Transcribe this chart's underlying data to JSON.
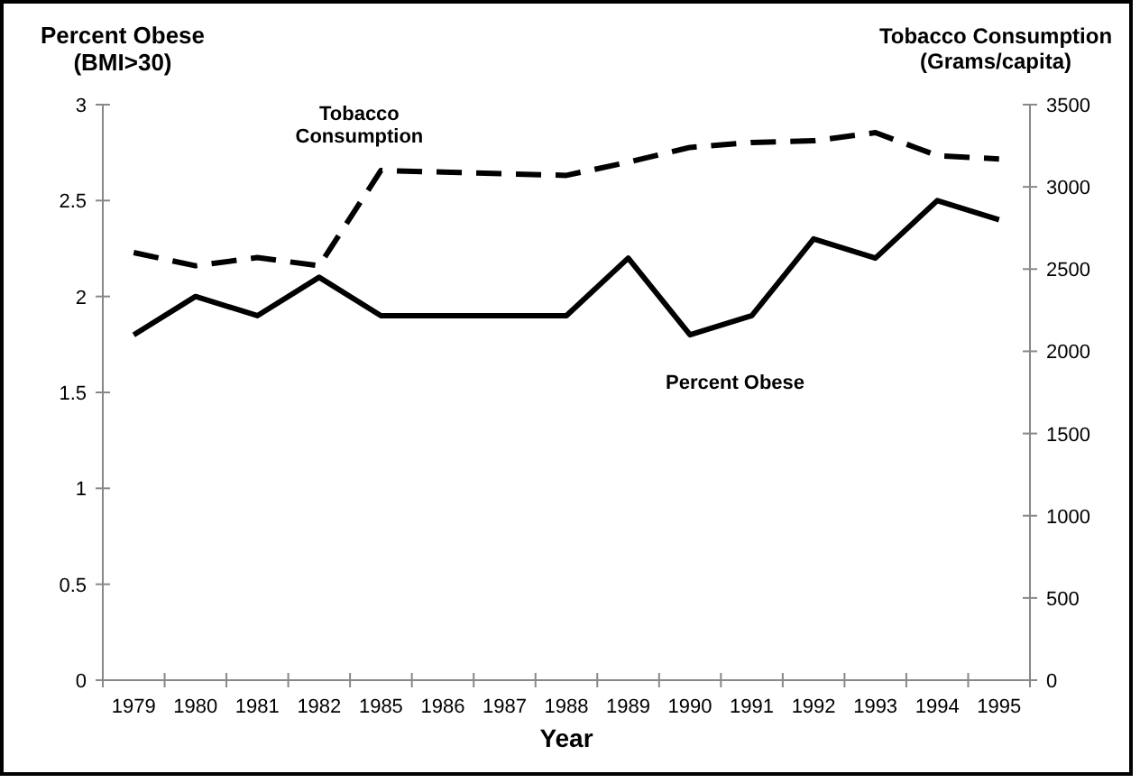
{
  "chart_data": {
    "type": "line",
    "xlabel": "Year",
    "ylabel": "Percent Obese\n(BMI>30)",
    "y2label": "Tobacco Consumption\n(Grams/capita)",
    "categories": [
      "1979",
      "1980",
      "1981",
      "1982",
      "1985",
      "1986",
      "1987",
      "1988",
      "1989",
      "1990",
      "1991",
      "1992",
      "1993",
      "1994",
      "1995"
    ],
    "series": [
      {
        "name": "Percent Obese",
        "color": "#000000",
        "line_style": "solid",
        "values": [
          1.8,
          2.0,
          1.9,
          2.1,
          1.9,
          1.9,
          1.9,
          1.9,
          2.2,
          1.8,
          1.9,
          2.3,
          2.2,
          2.5,
          2.4
        ]
      },
      {
        "name": "Tobacco\nConsumption",
        "color": "#000000",
        "line_style": "dashed",
        "axis": "y2",
        "values": [
          2600,
          2520,
          2570,
          2520,
          3100,
          3090,
          3080,
          3070,
          3150,
          3240,
          3270,
          3280,
          3330,
          3190,
          3170
        ]
      }
    ],
    "ylim": [
      0,
      3
    ],
    "yticks": [
      0,
      0.5,
      1,
      1.5,
      2,
      2.5,
      3
    ],
    "y2lim": [
      0,
      3500
    ],
    "y2ticks": [
      0,
      500,
      1000,
      1500,
      2000,
      2500,
      3000,
      3500
    ],
    "grid": false,
    "marker": "none"
  }
}
